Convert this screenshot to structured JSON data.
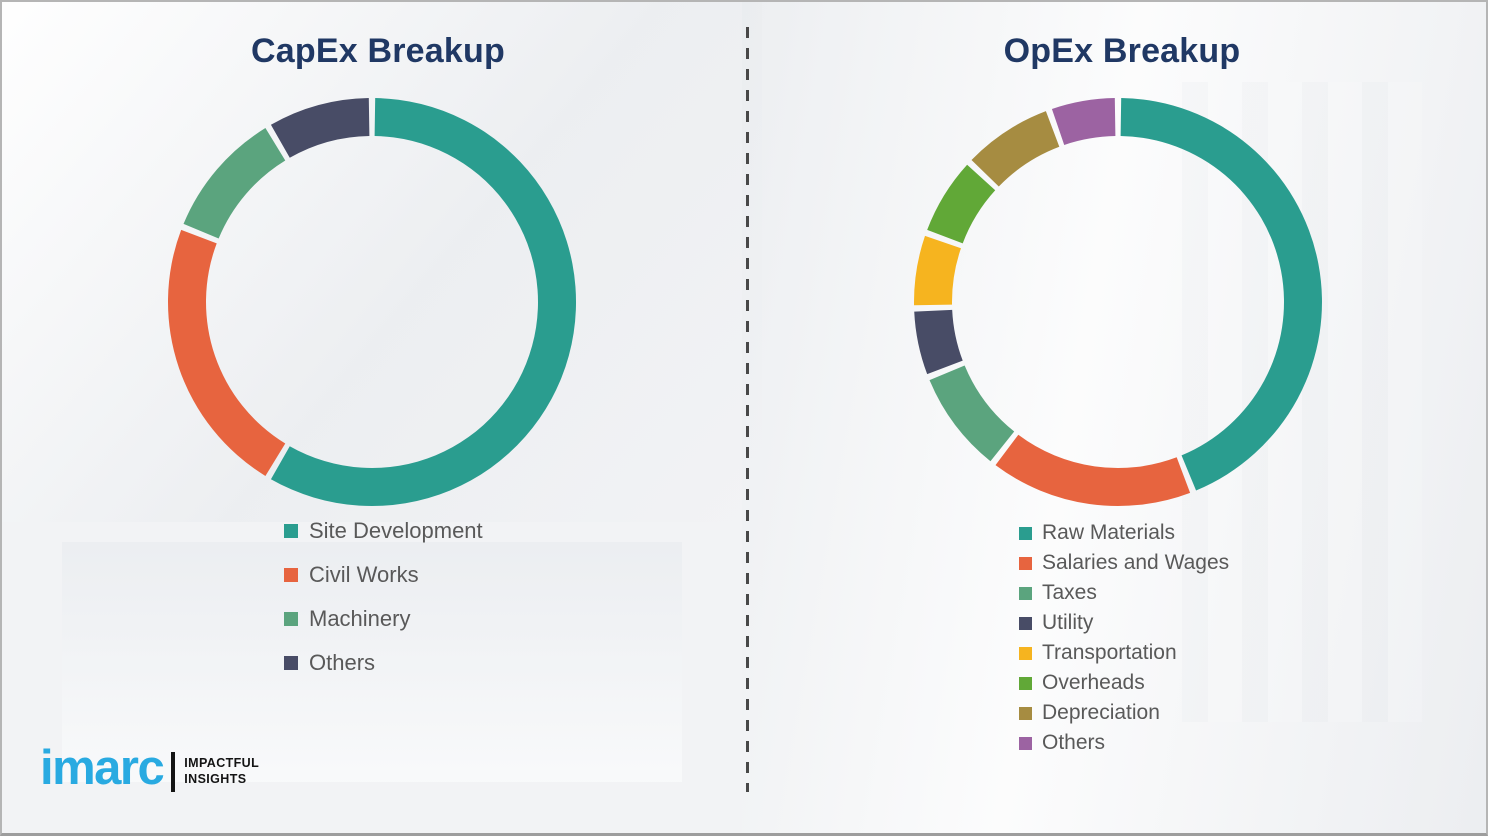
{
  "window": {
    "background_color": "#f2f3f5",
    "divider": {
      "style": "vertical-dashed",
      "color": "#484848"
    }
  },
  "colors": {
    "title_text": "#203864",
    "legend_text": "#595959",
    "logo_blue": "#29aae1",
    "logo_black": "#141414"
  },
  "branding": {
    "logo_text": "imarc",
    "tagline_line1": "IMPACTFUL",
    "tagline_line2": "INSIGHTS"
  },
  "chart_data": [
    {
      "type": "pie",
      "subtype": "donut",
      "title": "CapEx Breakup",
      "direction": "clockwise",
      "start_angle_deg": 0,
      "values_unit": "percent_estimated_from_arc_angles",
      "legend_position": "below-left",
      "segments": [
        {
          "label": "Site Development",
          "value": 58.5,
          "color": "#2a9d8f"
        },
        {
          "label": "Civil Works",
          "value": 22.5,
          "color": "#e7643f"
        },
        {
          "label": "Machinery",
          "value": 10.5,
          "color": "#5ba47e"
        },
        {
          "label": "Others",
          "value": 8.5,
          "color": "#484c66"
        }
      ]
    },
    {
      "type": "pie",
      "subtype": "donut",
      "title": "OpEx Breakup",
      "direction": "clockwise",
      "start_angle_deg": 0,
      "values_unit": "percent_estimated_from_arc_angles",
      "legend_position": "below-left",
      "segments": [
        {
          "label": "Raw Materials",
          "value": 44.0,
          "color": "#2a9d8f"
        },
        {
          "label": "Salaries and Wages",
          "value": 16.5,
          "color": "#e7643f"
        },
        {
          "label": "Taxes",
          "value": 8.5,
          "color": "#5ba47e"
        },
        {
          "label": "Utility",
          "value": 5.5,
          "color": "#484c66"
        },
        {
          "label": "Transportation",
          "value": 6.0,
          "color": "#f6b41f"
        },
        {
          "label": "Overheads",
          "value": 6.5,
          "color": "#61a837"
        },
        {
          "label": "Depreciation",
          "value": 7.5,
          "color": "#a68c41"
        },
        {
          "label": "Others",
          "value": 5.5,
          "color": "#9c63a2"
        }
      ]
    }
  ]
}
